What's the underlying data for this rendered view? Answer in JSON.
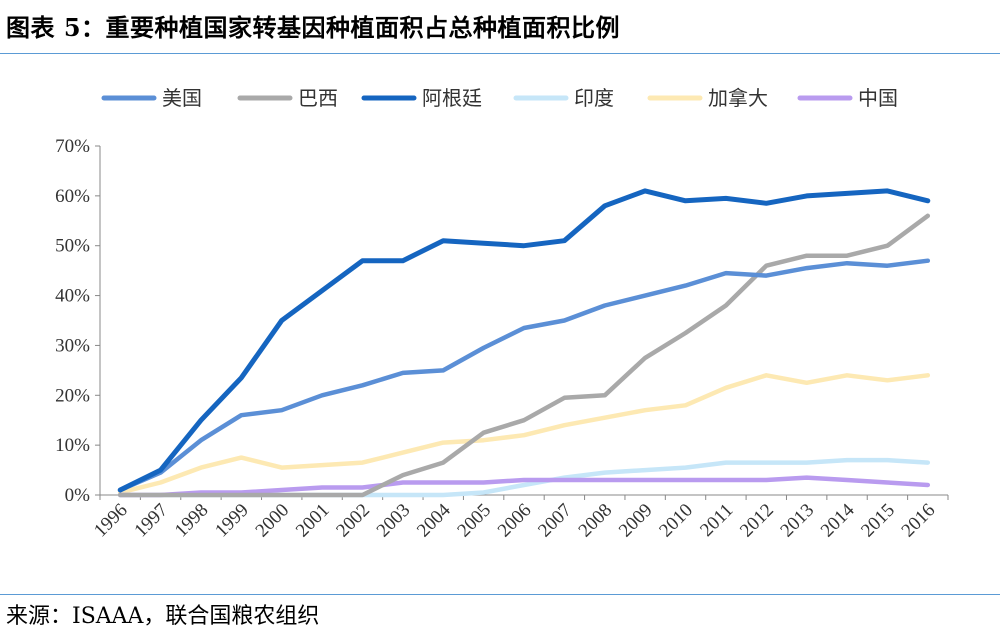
{
  "title": "图表 5：重要种植国家转基因种植面积占总种植面积比例",
  "source": "来源：ISAAA，联合国粮农组织",
  "chart_data": {
    "type": "line",
    "x": [
      "1996",
      "1997",
      "1998",
      "1999",
      "2000",
      "2001",
      "2002",
      "2003",
      "2004",
      "2005",
      "2006",
      "2007",
      "2008",
      "2009",
      "2010",
      "2011",
      "2012",
      "2013",
      "2014",
      "2015",
      "2016"
    ],
    "ylim": [
      0,
      70
    ],
    "y_ticks": [
      "0%",
      "10%",
      "20%",
      "30%",
      "40%",
      "50%",
      "60%",
      "70%"
    ],
    "legend_position": "top",
    "series": [
      {
        "name": "美国",
        "color": "#5b8fd6",
        "values": [
          1,
          4.5,
          11,
          16,
          17,
          20,
          22,
          24.5,
          25,
          29.5,
          33.5,
          35,
          38,
          40,
          42,
          44.5,
          44,
          45.5,
          46.5,
          46,
          47
        ]
      },
      {
        "name": "巴西",
        "color": "#a9a9a9",
        "values": [
          0,
          0,
          0,
          0,
          0,
          0,
          0,
          4,
          6.5,
          12.5,
          15,
          19.5,
          20,
          27.5,
          32.5,
          38,
          46,
          48,
          48,
          50,
          56
        ]
      },
      {
        "name": "阿根廷",
        "color": "#1565c0",
        "values": [
          1,
          5,
          15,
          23.5,
          35,
          41,
          47,
          47,
          51,
          50.5,
          50,
          51,
          58,
          61,
          59,
          59.5,
          58.5,
          60,
          60.5,
          61,
          59
        ]
      },
      {
        "name": "印度",
        "color": "#c6e6f8",
        "values": [
          0,
          0,
          0,
          0,
          0,
          0,
          0,
          0,
          0,
          0.5,
          2,
          3.5,
          4.5,
          5,
          5.5,
          6.5,
          6.5,
          6.5,
          7,
          7,
          6.5
        ]
      },
      {
        "name": "加拿大",
        "color": "#fde9b3",
        "values": [
          0.5,
          2.5,
          5.5,
          7.5,
          5.5,
          6,
          6.5,
          8.5,
          10.5,
          11,
          12,
          14,
          15.5,
          17,
          18,
          21.5,
          24,
          22.5,
          24,
          23,
          24
        ]
      },
      {
        "name": "中国",
        "color": "#b99bef",
        "values": [
          0,
          0,
          0.5,
          0.5,
          1,
          1.5,
          1.5,
          2.5,
          2.5,
          2.5,
          3,
          3,
          3,
          3,
          3,
          3,
          3,
          3.5,
          3,
          2.5,
          2
        ]
      }
    ]
  }
}
